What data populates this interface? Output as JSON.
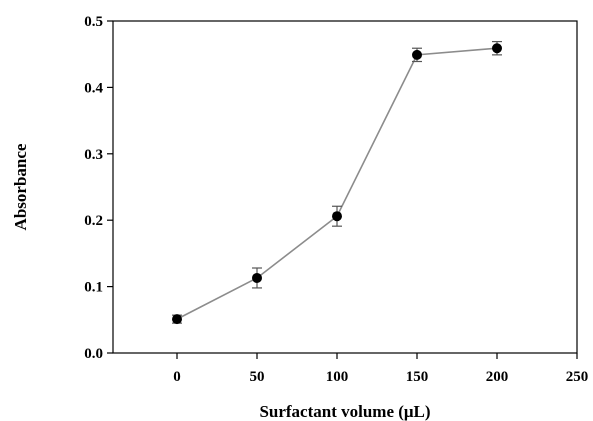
{
  "chart_data": {
    "type": "line",
    "title": "",
    "xlabel": "Surfactant volume (μL)",
    "ylabel": "Absorbance",
    "xlim": [
      -40,
      250
    ],
    "ylim": [
      0,
      0.5
    ],
    "xticks": [
      0,
      50,
      100,
      150,
      200,
      250
    ],
    "yticks": [
      0.0,
      0.1,
      0.2,
      0.3,
      0.4,
      0.5
    ],
    "xtick_labels": [
      "0",
      "50",
      "100",
      "150",
      "200",
      "250"
    ],
    "ytick_labels": [
      "0.0",
      "0.1",
      "0.2",
      "0.3",
      "0.4",
      "0.5"
    ],
    "grid": false,
    "legend": "none",
    "line_color": "#8c8c8c",
    "marker_color": "#000000",
    "series": [
      {
        "x": [
          0,
          50,
          100,
          150,
          200
        ],
        "y": [
          0.051,
          0.113,
          0.206,
          0.449,
          0.459
        ],
        "yerr": [
          0.006,
          0.015,
          0.015,
          0.01,
          0.01
        ]
      }
    ]
  }
}
